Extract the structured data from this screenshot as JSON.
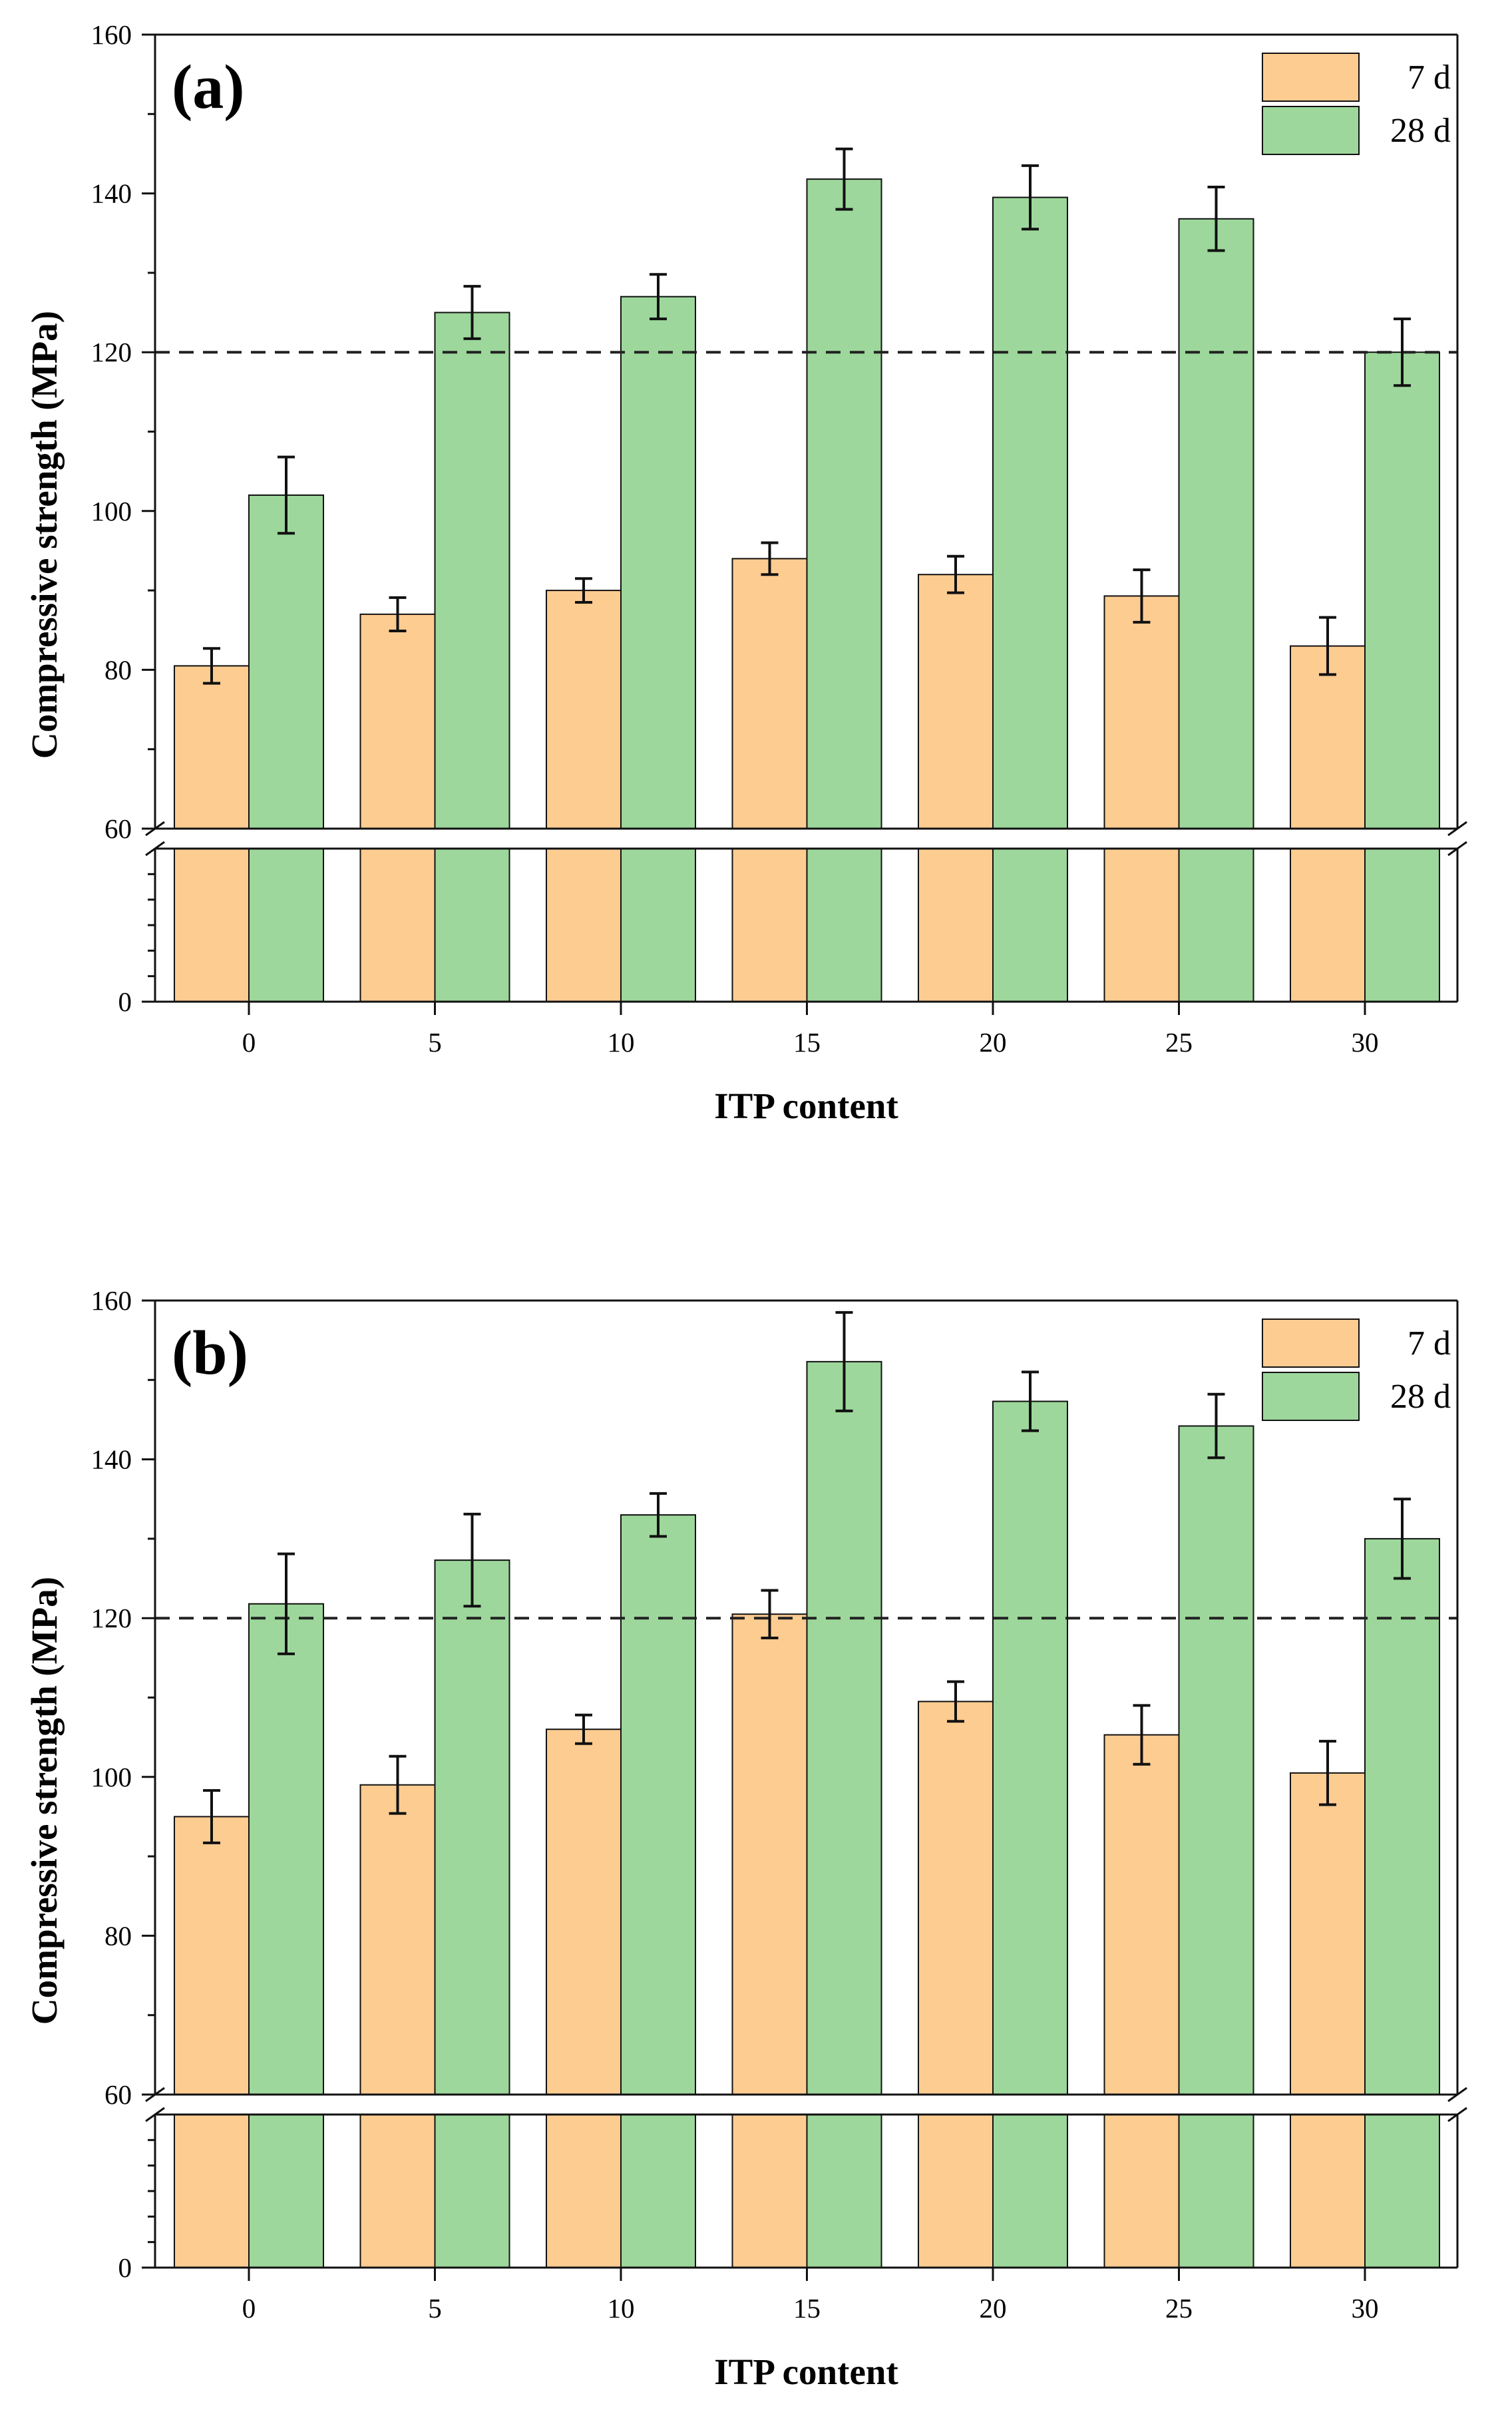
{
  "chart_data": [
    {
      "type": "bar",
      "panel_label": "(a)",
      "categories": [
        "0",
        "5",
        "10",
        "15",
        "20",
        "25",
        "30"
      ],
      "series": [
        {
          "name": "7 d",
          "color": "#FDCC91",
          "values": [
            80.5,
            87.0,
            90.0,
            94.0,
            92.0,
            89.3,
            83.0
          ],
          "errors": [
            2.2,
            2.1,
            1.5,
            2.0,
            2.3,
            3.3,
            3.6
          ]
        },
        {
          "name": "28 d",
          "color": "#9DD79B",
          "values": [
            102.0,
            125.0,
            127.0,
            141.8,
            139.5,
            136.8,
            120.0
          ],
          "errors": [
            4.8,
            3.3,
            2.8,
            3.8,
            4.0,
            4.0,
            4.2
          ]
        }
      ],
      "xlabel": "ITP content",
      "ylabel": "Compressive strength  (MPa)",
      "ylim_upper": [
        60,
        160
      ],
      "ylim_lower": [
        0,
        60
      ],
      "yticks_upper": [
        "60",
        "80",
        "100",
        "120",
        "140",
        "160"
      ],
      "yticks_lower": [
        "0"
      ],
      "axis_break": true,
      "reference_line": 120,
      "legend_position": "top-right"
    },
    {
      "type": "bar",
      "panel_label": "(b)",
      "categories": [
        "0",
        "5",
        "10",
        "15",
        "20",
        "25",
        "30"
      ],
      "series": [
        {
          "name": "7 d",
          "color": "#FDCC91",
          "values": [
            95.0,
            99.0,
            106.0,
            120.5,
            109.5,
            105.3,
            100.5
          ],
          "errors": [
            3.3,
            3.6,
            1.8,
            3.0,
            2.5,
            3.7,
            4.0
          ]
        },
        {
          "name": "28 d",
          "color": "#9DD79B",
          "values": [
            121.8,
            127.3,
            133.0,
            152.3,
            147.3,
            144.2,
            130.0
          ],
          "errors": [
            6.3,
            5.8,
            2.7,
            6.2,
            3.7,
            4.0,
            5.0
          ]
        }
      ],
      "xlabel": "ITP content",
      "ylabel": "Compressive strength  (MPa)",
      "ylim_upper": [
        60,
        160
      ],
      "ylim_lower": [
        0,
        60
      ],
      "yticks_upper": [
        "60",
        "80",
        "100",
        "120",
        "140",
        "160"
      ],
      "yticks_lower": [
        "0"
      ],
      "axis_break": true,
      "reference_line": 120,
      "legend_position": "top-right"
    }
  ]
}
